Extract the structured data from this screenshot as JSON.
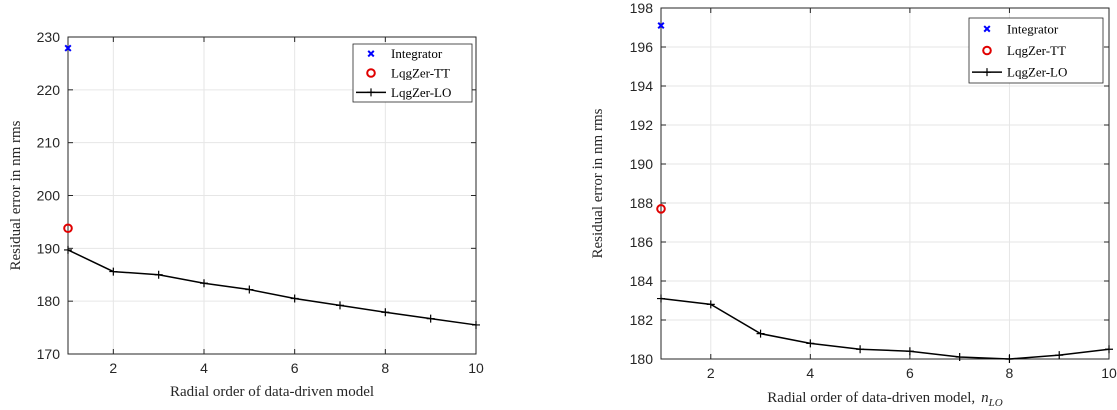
{
  "chart_data": [
    {
      "type": "line",
      "xlabel": "Radial order of data-driven model",
      "ylabel": "Residual error in nm rms",
      "xlim": [
        1,
        10
      ],
      "ylim": [
        170,
        230
      ],
      "xticks": [
        "2",
        "4",
        "6",
        "8",
        "10"
      ],
      "yticks": [
        "170",
        "180",
        "190",
        "200",
        "210",
        "220",
        "230"
      ],
      "grid": true,
      "legend_position": "top-right",
      "series": [
        {
          "name": "Integrator",
          "marker": "x",
          "color": "#0000ff",
          "x": [
            1
          ],
          "y": [
            227.9
          ]
        },
        {
          "name": "LqgZer-TT",
          "marker": "o",
          "color": "#e00000",
          "x": [
            1
          ],
          "y": [
            193.8
          ]
        },
        {
          "name": "LqgZer-LO",
          "marker": "+",
          "color": "#000000",
          "line": true,
          "x": [
            1,
            2,
            3,
            4,
            5,
            6,
            7,
            8,
            9,
            10
          ],
          "y": [
            189.7,
            185.6,
            185.0,
            183.4,
            182.2,
            180.5,
            179.2,
            177.9,
            176.7,
            175.5
          ]
        }
      ]
    },
    {
      "type": "line",
      "xlabel": "Radial order of data-driven model,",
      "xlabel_math_base": "n",
      "xlabel_math_sub": "LO",
      "ylabel": "Residual error in nm rms",
      "xlim": [
        1,
        10
      ],
      "ylim": [
        180,
        198
      ],
      "xticks": [
        "2",
        "4",
        "6",
        "8",
        "10"
      ],
      "yticks": [
        "180",
        "182",
        "184",
        "186",
        "188",
        "190",
        "192",
        "194",
        "196",
        "198"
      ],
      "grid": true,
      "legend_position": "top-right",
      "series": [
        {
          "name": "Integrator",
          "marker": "x",
          "color": "#0000ff",
          "x": [
            1
          ],
          "y": [
            197.1
          ]
        },
        {
          "name": "LqgZer-TT",
          "marker": "o",
          "color": "#e00000",
          "x": [
            1
          ],
          "y": [
            187.7
          ]
        },
        {
          "name": "LqgZer-LO",
          "marker": "+",
          "color": "#000000",
          "line": true,
          "x": [
            1,
            2,
            3,
            4,
            5,
            6,
            7,
            8,
            9,
            10
          ],
          "y": [
            183.1,
            182.8,
            181.3,
            180.8,
            180.5,
            180.4,
            180.1,
            180.0,
            180.2,
            180.5
          ]
        }
      ]
    }
  ]
}
